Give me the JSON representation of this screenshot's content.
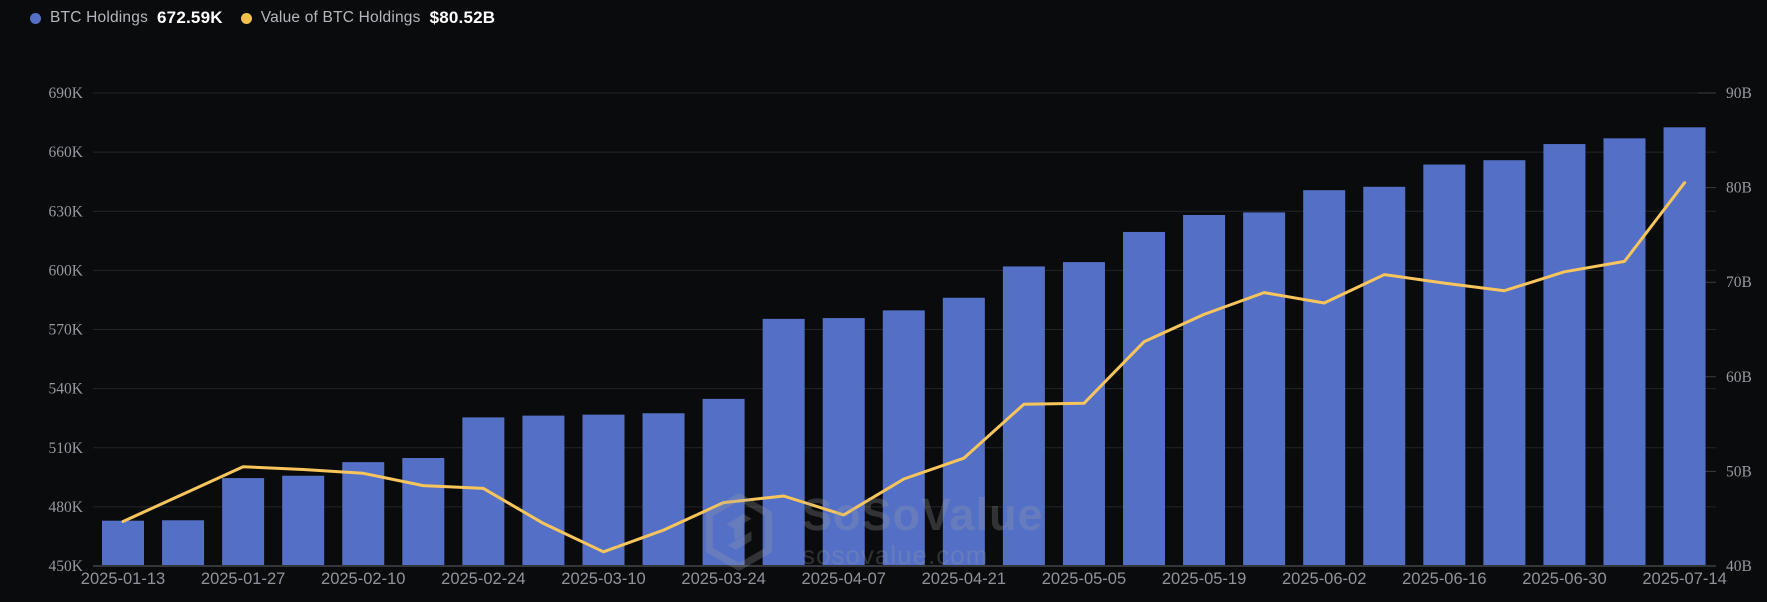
{
  "legend": {
    "series": [
      {
        "label": "BTC Holdings",
        "value": "672.59K",
        "color": "#5470C6"
      },
      {
        "label": "Value of BTC Holdings",
        "value": "$80.52B",
        "color": "#F2C14E"
      }
    ]
  },
  "watermark": {
    "brand": "SoSoValue",
    "domain": "sosovalue.com"
  },
  "chart_data": {
    "type": "bar+line",
    "title": "",
    "x": [
      "2025-01-13",
      "2025-01-20",
      "2025-01-27",
      "2025-02-03",
      "2025-02-10",
      "2025-02-17",
      "2025-02-24",
      "2025-03-03",
      "2025-03-10",
      "2025-03-17",
      "2025-03-24",
      "2025-03-31",
      "2025-04-07",
      "2025-04-14",
      "2025-04-21",
      "2025-04-28",
      "2025-05-05",
      "2025-05-12",
      "2025-05-19",
      "2025-05-26",
      "2025-06-02",
      "2025-06-09",
      "2025-06-16",
      "2025-06-23",
      "2025-06-30",
      "2025-07-07",
      "2025-07-14"
    ],
    "x_tick_labels": [
      "2025-01-13",
      "2025-01-27",
      "2025-02-10",
      "2025-02-24",
      "2025-03-10",
      "2025-03-24",
      "2025-04-07",
      "2025-04-21",
      "2025-05-05",
      "2025-05-19",
      "2025-06-02",
      "2025-06-16",
      "2025-06-30",
      "2025-07-14"
    ],
    "series": [
      {
        "name": "BTC Holdings",
        "type": "bar",
        "axis": "left",
        "unit": "K",
        "color": "#5470C6",
        "values": [
          473.0,
          473.2,
          494.6,
          495.8,
          502.7,
          504.8,
          525.4,
          526.3,
          526.8,
          527.5,
          534.8,
          575.4,
          575.8,
          579.7,
          586.1,
          602.0,
          604.2,
          619.5,
          628.1,
          629.4,
          640.7,
          642.4,
          653.7,
          655.9,
          664.1,
          667.0,
          672.59
        ]
      },
      {
        "name": "Value of BTC Holdings",
        "type": "line",
        "axis": "right",
        "unit": "B",
        "color": "#F8C55C",
        "values": [
          44.7,
          47.6,
          50.5,
          50.2,
          49.8,
          48.5,
          48.2,
          44.5,
          41.5,
          43.8,
          46.7,
          47.4,
          45.4,
          49.2,
          51.4,
          57.1,
          57.2,
          63.7,
          66.6,
          68.9,
          67.8,
          70.8,
          69.9,
          69.1,
          71.1,
          72.2,
          80.52
        ]
      }
    ],
    "left_axis": {
      "min": 450,
      "max": 690,
      "ticks": [
        "450K",
        "480K",
        "510K",
        "540K",
        "570K",
        "600K",
        "630K",
        "660K",
        "690K"
      ]
    },
    "right_axis": {
      "min": 40,
      "max": 90,
      "ticks": [
        "40B",
        "50B",
        "60B",
        "70B",
        "80B",
        "90B"
      ]
    },
    "grid": true,
    "legend_position": "top-left"
  }
}
